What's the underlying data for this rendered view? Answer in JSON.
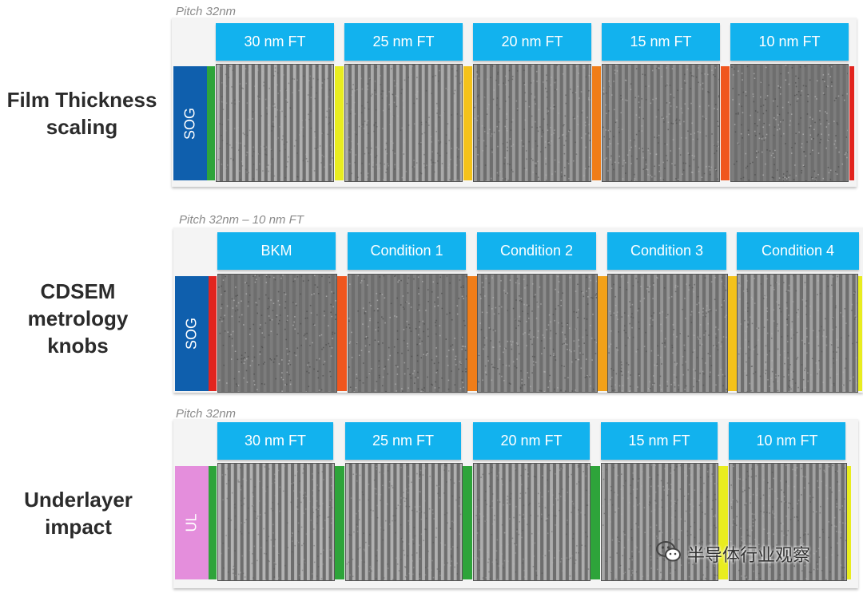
{
  "rows": [
    {
      "label_lines": [
        "Film Thickness",
        "scaling"
      ],
      "pitch": "Pitch 32nm",
      "side_tab": "SOG",
      "side_color": "#0f5fad",
      "headers": [
        "30 nm FT",
        "25 nm FT",
        "20 nm FT",
        "15 nm FT",
        "10 nm FT"
      ],
      "bar_colors": [
        "#2ea43a",
        "#e9ed1f",
        "#f4c21a",
        "#f07d18",
        "#f0561e",
        "#e2241e"
      ],
      "line_contrast": [
        0.95,
        0.85,
        0.6,
        0.4,
        0.12
      ]
    },
    {
      "label_lines": [
        "CDSEM",
        "metrology",
        "knobs"
      ],
      "pitch": "Pitch 32nm – 10 nm FT",
      "side_tab": "SOG",
      "side_color": "#0f5fad",
      "headers": [
        "BKM",
        "Condition 1",
        "Condition 2",
        "Condition 3",
        "Condition 4"
      ],
      "bar_colors": [
        "#e2241e",
        "#f0561e",
        "#f07d18",
        "#f2a118",
        "#f4c21a",
        "#e9ed1f"
      ],
      "line_contrast": [
        0.1,
        0.15,
        0.35,
        0.5,
        0.7
      ]
    },
    {
      "label_lines": [
        "Underlayer",
        "impact"
      ],
      "pitch": "Pitch 32nm",
      "side_tab": "UL",
      "side_color": "#e48edc",
      "headers": [
        "30 nm FT",
        "25 nm FT",
        "20 nm FT",
        "15 nm FT",
        "10 nm FT"
      ],
      "bar_colors": [
        "#2ea43a",
        "#2ea43a",
        "#2ea43a",
        "#2ea43a",
        "#e9ed1f",
        "#e9ed1f"
      ],
      "line_contrast": [
        1.0,
        0.95,
        0.9,
        0.8,
        0.7
      ]
    }
  ],
  "watermark": {
    "text": "半导体行业观察",
    "icon": "wechat-icon"
  }
}
